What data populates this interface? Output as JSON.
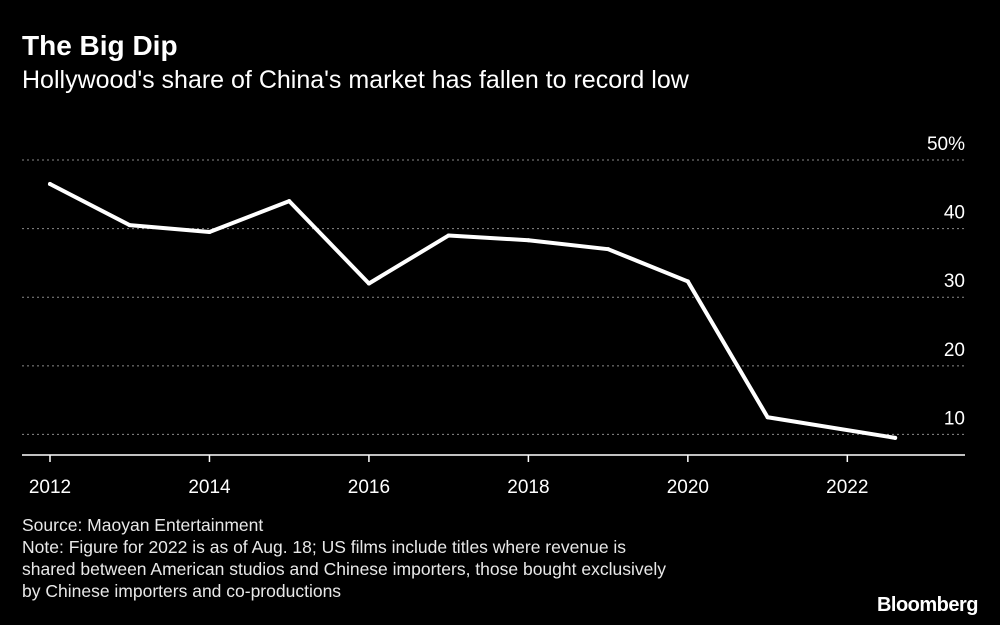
{
  "header": {
    "title": "The Big Dip",
    "subtitle": "Hollywood's share of China's market has fallen to record low"
  },
  "footer": {
    "source": "Source: Maoyan Entertainment",
    "note_lines": [
      "Note: Figure for 2022 is as of Aug. 18; US films include titles where revenue is",
      "shared between American studios and Chinese importers, those bought exclusively",
      "by Chinese importers and co-productions"
    ],
    "brand": "Bloomberg"
  },
  "colors": {
    "background": "#000000",
    "line": "#ffffff",
    "grid": "#8a8a8a",
    "text": "#ffffff"
  },
  "chart_data": {
    "type": "line",
    "title": "The Big Dip",
    "subtitle": "Hollywood's share of China's market has fallen to record low",
    "xlabel": "",
    "ylabel": "",
    "x": [
      2012,
      2013,
      2014,
      2015,
      2016,
      2017,
      2018,
      2019,
      2020,
      2021,
      2022.6
    ],
    "series": [
      {
        "name": "Hollywood share of China box office (%)",
        "values": [
          46.5,
          40.5,
          39.5,
          44,
          32,
          39,
          38.3,
          37,
          32.3,
          12.5,
          9.5
        ]
      }
    ],
    "xlim": [
      2012,
      2023.2
    ],
    "ylim": [
      7,
      50
    ],
    "x_ticks": [
      2012,
      2014,
      2016,
      2018,
      2020,
      2022
    ],
    "x_tick_labels": [
      "2012",
      "2014",
      "2016",
      "2018",
      "2020",
      "2022"
    ],
    "y_ticks": [
      50,
      40,
      30,
      20,
      10
    ],
    "y_tick_labels": [
      "50%",
      "40",
      "30",
      "20",
      "10"
    ],
    "grid": true,
    "legend": "none"
  }
}
